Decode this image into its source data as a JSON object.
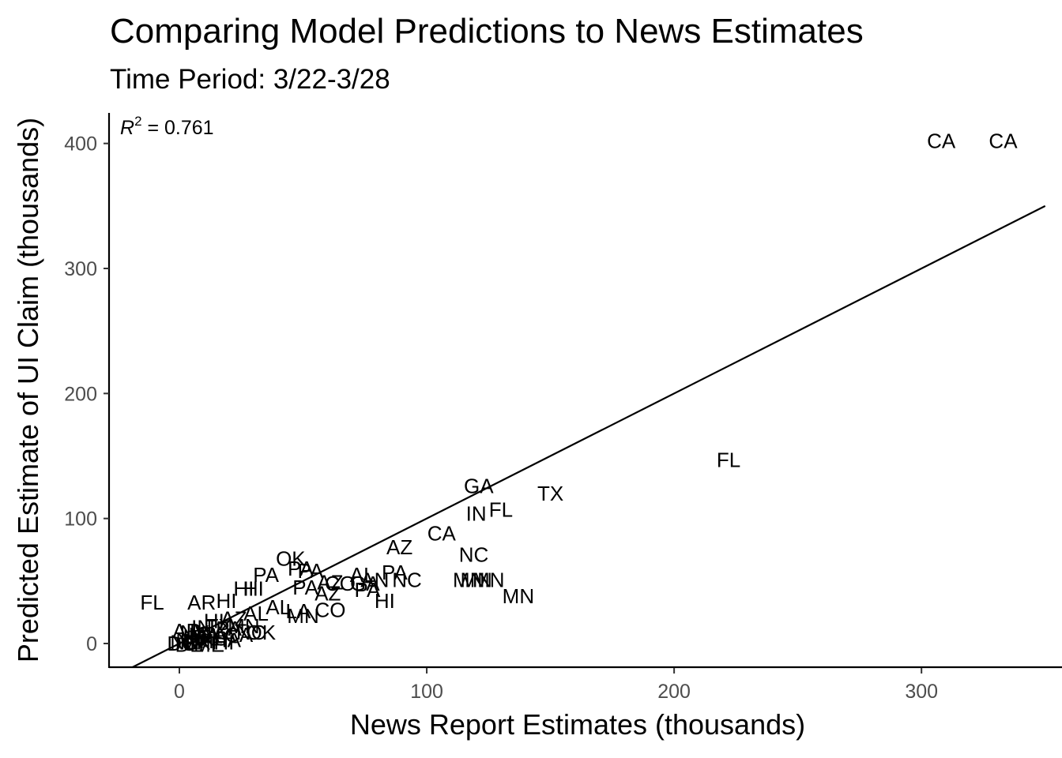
{
  "chart_data": {
    "type": "scatter",
    "title": "Comparing Model Predictions to News Estimates",
    "subtitle": "Time Period:  3/22-3/28",
    "xlabel": "News Report Estimates (thousands)",
    "ylabel": "Predicted Estimate of UI Claim (thousands)",
    "xlim": [
      -28,
      350
    ],
    "ylim": [
      -18,
      425
    ],
    "xticks": [
      0,
      100,
      200,
      300
    ],
    "yticks": [
      0,
      100,
      200,
      300,
      400
    ],
    "grid": false,
    "annotation": {
      "r2_label": "R",
      "r2_sup": "2",
      "r2_value": " = 0.761"
    },
    "reference_line": {
      "type": "identity",
      "slope": 1,
      "intercept": 0
    },
    "points": [
      {
        "label": "CA",
        "x": 308,
        "y": 402
      },
      {
        "label": "CA",
        "x": 333,
        "y": 402
      },
      {
        "label": "FL",
        "x": 222,
        "y": 147
      },
      {
        "label": "GA",
        "x": 121,
        "y": 126
      },
      {
        "label": "TX",
        "x": 150,
        "y": 120
      },
      {
        "label": "IN",
        "x": 120,
        "y": 104
      },
      {
        "label": "FL",
        "x": 130,
        "y": 107
      },
      {
        "label": "CA",
        "x": 106,
        "y": 88
      },
      {
        "label": "AZ",
        "x": 89,
        "y": 77
      },
      {
        "label": "NC",
        "x": 119,
        "y": 71
      },
      {
        "label": "MN",
        "x": 117,
        "y": 51
      },
      {
        "label": "MN",
        "x": 120,
        "y": 51
      },
      {
        "label": "MN",
        "x": 125,
        "y": 51
      },
      {
        "label": "MN",
        "x": 137,
        "y": 38
      },
      {
        "label": "OK",
        "x": 45,
        "y": 68
      },
      {
        "label": "PA",
        "x": 49,
        "y": 60
      },
      {
        "label": "PA",
        "x": 53,
        "y": 58
      },
      {
        "label": "PA",
        "x": 35,
        "y": 55
      },
      {
        "label": "AL",
        "x": 74,
        "y": 55
      },
      {
        "label": "PA",
        "x": 87,
        "y": 57
      },
      {
        "label": "NC",
        "x": 92,
        "y": 51
      },
      {
        "label": "AN",
        "x": 79,
        "y": 51
      },
      {
        "label": "CO",
        "x": 65,
        "y": 48
      },
      {
        "label": "GA",
        "x": 75,
        "y": 48
      },
      {
        "label": "AZ",
        "x": 61,
        "y": 49
      },
      {
        "label": "PA",
        "x": 51,
        "y": 45
      },
      {
        "label": "PA",
        "x": 76,
        "y": 43
      },
      {
        "label": "AZ",
        "x": 60,
        "y": 40
      },
      {
        "label": "HI",
        "x": 83,
        "y": 34
      },
      {
        "label": "HI",
        "x": 26,
        "y": 44
      },
      {
        "label": "HI",
        "x": 30,
        "y": 44
      },
      {
        "label": "FL",
        "x": -11,
        "y": 33
      },
      {
        "label": "AR",
        "x": 9,
        "y": 33
      },
      {
        "label": "HI",
        "x": 19,
        "y": 34
      },
      {
        "label": "AL",
        "x": 40,
        "y": 29
      },
      {
        "label": "LA",
        "x": 48,
        "y": 26
      },
      {
        "label": "MN",
        "x": 50,
        "y": 22
      },
      {
        "label": "CO",
        "x": 61,
        "y": 27
      },
      {
        "label": "AL",
        "x": 31,
        "y": 24
      },
      {
        "label": "AZ",
        "x": 22,
        "y": 20
      },
      {
        "label": "HI",
        "x": 14,
        "y": 18
      },
      {
        "label": "IN",
        "x": 9,
        "y": 13
      },
      {
        "label": "TX",
        "x": 16,
        "y": 14
      },
      {
        "label": "PA",
        "x": 20,
        "y": 12
      },
      {
        "label": "MN",
        "x": 26,
        "y": 14
      },
      {
        "label": "NC",
        "x": 29,
        "y": 9
      },
      {
        "label": "OK",
        "x": 33,
        "y": 9
      },
      {
        "label": "GA",
        "x": 13,
        "y": 8
      },
      {
        "label": "CA",
        "x": 24,
        "y": 7
      },
      {
        "label": "LA",
        "x": 18,
        "y": 6
      },
      {
        "label": "AR",
        "x": 3,
        "y": 10
      },
      {
        "label": "NV",
        "x": 6,
        "y": 9
      },
      {
        "label": "MA",
        "x": 10,
        "y": 7
      },
      {
        "label": "UT",
        "x": 7,
        "y": 5
      },
      {
        "label": "KS",
        "x": 14,
        "y": 4
      },
      {
        "label": "IA",
        "x": 21,
        "y": 3
      },
      {
        "label": "NM",
        "x": 5,
        "y": 3
      },
      {
        "label": "NH",
        "x": 8,
        "y": 2
      },
      {
        "label": "RI",
        "x": 11,
        "y": 1
      },
      {
        "label": "HI",
        "x": 18,
        "y": 1
      },
      {
        "label": "NE",
        "x": 2,
        "y": 1
      },
      {
        "label": "DC",
        "x": 1,
        "y": 0
      },
      {
        "label": "DE",
        "x": 4,
        "y": -1
      },
      {
        "label": "VT",
        "x": 6,
        "y": 0
      },
      {
        "label": "ME",
        "x": 12,
        "y": -1
      }
    ]
  }
}
